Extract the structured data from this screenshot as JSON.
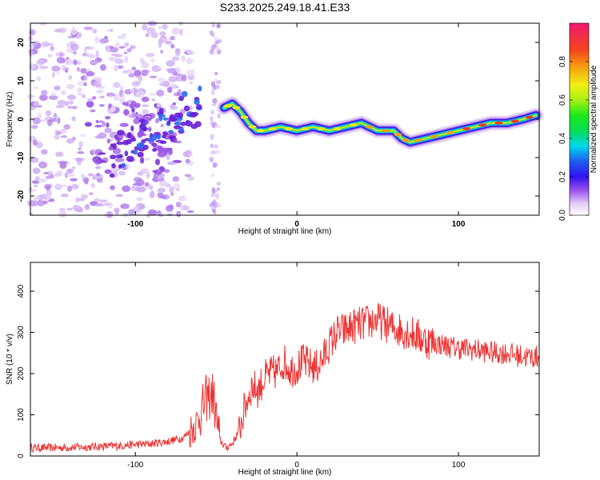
{
  "chart_data": [
    {
      "type": "heatmap",
      "title": "S233.2025.249.18.41.E33",
      "xlabel": "Height of straight line (km)",
      "ylabel": "Frequency (Hz)",
      "xlim": [
        -165,
        150
      ],
      "ylim": [
        -25,
        25
      ],
      "x_ticks": [
        -100,
        0,
        100
      ],
      "y_ticks": [
        -20,
        -10,
        0,
        10,
        20
      ],
      "colorbar": {
        "label": "Normalized spectral amplitude",
        "range": [
          0.0,
          1.0
        ],
        "ticks": [
          "0.0",
          "0.2",
          "0.4",
          "0.6",
          "0.8"
        ]
      },
      "ridge": {
        "description": "dominant frequency track",
        "x": [
          -45,
          -40,
          -35,
          -30,
          -25,
          -20,
          -10,
          0,
          10,
          20,
          30,
          40,
          50,
          60,
          65,
          70,
          80,
          90,
          100,
          110,
          120,
          130,
          140,
          148
        ],
        "y": [
          3,
          4,
          2,
          -1,
          -3,
          -3,
          -2,
          -3,
          -2,
          -3,
          -2,
          -1,
          -3,
          -3,
          -5,
          -6,
          -5,
          -4,
          -3,
          -2,
          -1,
          -1,
          0,
          1
        ]
      }
    },
    {
      "type": "line",
      "xlabel": "Height of straight line (km)",
      "ylabel": "SNR (10 * v/v)",
      "xlim": [
        -165,
        150
      ],
      "ylim": [
        0,
        470
      ],
      "x_ticks": [
        -100,
        0,
        100
      ],
      "y_ticks": [
        0,
        100,
        200,
        300,
        400
      ],
      "series": [
        {
          "name": "SNR",
          "color": "#ee3333",
          "x": [
            -165,
            -150,
            -130,
            -110,
            -90,
            -80,
            -70,
            -62,
            -56,
            -52,
            -48,
            -44,
            -40,
            -36,
            -32,
            -28,
            -24,
            -20,
            -16,
            -12,
            -8,
            -4,
            0,
            4,
            8,
            12,
            16,
            20,
            25,
            30,
            35,
            40,
            45,
            50,
            55,
            60,
            65,
            70,
            75,
            80,
            85,
            90,
            95,
            100,
            105,
            110,
            115,
            120,
            125,
            130,
            135,
            140,
            145,
            150
          ],
          "values": [
            20,
            20,
            22,
            25,
            30,
            35,
            45,
            80,
            140,
            150,
            40,
            20,
            30,
            60,
            120,
            170,
            160,
            190,
            200,
            205,
            230,
            210,
            215,
            230,
            220,
            215,
            235,
            270,
            300,
            305,
            315,
            320,
            325,
            330,
            320,
            310,
            305,
            300,
            290,
            280,
            275,
            270,
            265,
            262,
            260,
            258,
            255,
            252,
            250,
            250,
            245,
            242,
            240,
            240
          ]
        }
      ]
    }
  ]
}
